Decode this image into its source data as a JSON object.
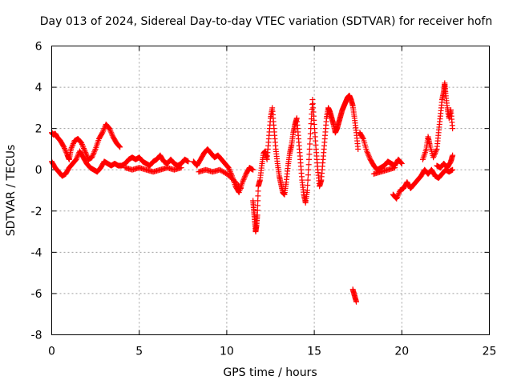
{
  "chart_data": {
    "type": "scatter",
    "title": "Day 013 of 2024, Sidereal Day-to-day VTEC variation (SDTVAR) for receiver hofn",
    "xlabel": "GPS time / hours",
    "ylabel": "SDTVAR / TECUs",
    "xlim": [
      0,
      25
    ],
    "ylim": [
      -8,
      6
    ],
    "x_ticks": [
      0,
      5,
      10,
      15,
      20,
      25
    ],
    "y_ticks": [
      -8,
      -6,
      -4,
      -2,
      0,
      2,
      4,
      6
    ],
    "x_tick_labels": [
      "0",
      "5",
      "10",
      "15",
      "20",
      "25"
    ],
    "y_tick_labels": [
      "-8",
      "-6",
      "-4",
      "-2",
      "0",
      "2",
      "4",
      "6"
    ],
    "grid": true,
    "marker": "plus",
    "color": "#ff0000",
    "series": [
      {
        "name": "SDTVAR",
        "points": [
          [
            0.0,
            1.8
          ],
          [
            0.1,
            1.7
          ],
          [
            0.2,
            1.75
          ],
          [
            0.3,
            1.6
          ],
          [
            0.5,
            1.4
          ],
          [
            0.7,
            1.1
          ],
          [
            0.9,
            0.7
          ],
          [
            1.0,
            0.5
          ],
          [
            1.1,
            1.0
          ],
          [
            1.3,
            1.4
          ],
          [
            1.5,
            1.5
          ],
          [
            1.7,
            1.3
          ],
          [
            1.9,
            0.9
          ],
          [
            2.1,
            0.5
          ],
          [
            2.3,
            0.6
          ],
          [
            2.5,
            1.0
          ],
          [
            2.7,
            1.5
          ],
          [
            2.9,
            1.8
          ],
          [
            3.1,
            2.2
          ],
          [
            3.3,
            2.0
          ],
          [
            3.5,
            1.6
          ],
          [
            3.7,
            1.3
          ],
          [
            3.9,
            1.1
          ],
          [
            0.0,
            0.4
          ],
          [
            0.2,
            0.1
          ],
          [
            0.4,
            -0.1
          ],
          [
            0.6,
            -0.3
          ],
          [
            0.8,
            -0.2
          ],
          [
            1.0,
            0.1
          ],
          [
            1.2,
            0.3
          ],
          [
            1.4,
            0.5
          ],
          [
            1.6,
            0.9
          ],
          [
            1.8,
            0.6
          ],
          [
            2.0,
            0.3
          ],
          [
            2.2,
            0.1
          ],
          [
            2.4,
            0.0
          ],
          [
            2.6,
            -0.1
          ],
          [
            2.8,
            0.1
          ],
          [
            3.0,
            0.4
          ],
          [
            3.2,
            0.3
          ],
          [
            3.4,
            0.2
          ],
          [
            3.6,
            0.3
          ],
          [
            3.8,
            0.2
          ],
          [
            4.0,
            0.2
          ],
          [
            4.2,
            0.3
          ],
          [
            4.4,
            0.5
          ],
          [
            4.6,
            0.6
          ],
          [
            4.8,
            0.5
          ],
          [
            5.0,
            0.6
          ],
          [
            5.2,
            0.4
          ],
          [
            5.4,
            0.3
          ],
          [
            5.6,
            0.2
          ],
          [
            5.8,
            0.4
          ],
          [
            6.0,
            0.5
          ],
          [
            6.2,
            0.7
          ],
          [
            6.4,
            0.4
          ],
          [
            6.6,
            0.3
          ],
          [
            6.8,
            0.5
          ],
          [
            7.0,
            0.3
          ],
          [
            7.2,
            0.2
          ],
          [
            7.4,
            0.3
          ],
          [
            7.6,
            0.5
          ],
          [
            7.8,
            0.4
          ],
          [
            4.2,
            0.1
          ],
          [
            4.6,
            0.0
          ],
          [
            5.0,
            0.1
          ],
          [
            5.4,
            0.0
          ],
          [
            5.8,
            -0.1
          ],
          [
            6.2,
            0.0
          ],
          [
            6.6,
            0.1
          ],
          [
            7.0,
            0.0
          ],
          [
            7.4,
            0.1
          ],
          [
            8.1,
            0.4
          ],
          [
            8.3,
            0.2
          ],
          [
            8.5,
            0.5
          ],
          [
            8.7,
            0.8
          ],
          [
            8.9,
            1.0
          ],
          [
            9.1,
            0.8
          ],
          [
            9.3,
            0.6
          ],
          [
            9.5,
            0.7
          ],
          [
            9.7,
            0.5
          ],
          [
            9.9,
            0.3
          ],
          [
            10.1,
            0.1
          ],
          [
            10.3,
            -0.3
          ],
          [
            10.5,
            -0.8
          ],
          [
            10.7,
            -1.1
          ],
          [
            10.9,
            -0.6
          ],
          [
            11.1,
            -0.2
          ],
          [
            11.3,
            0.1
          ],
          [
            11.5,
            0.0
          ],
          [
            8.4,
            -0.1
          ],
          [
            8.8,
            0.0
          ],
          [
            9.2,
            -0.1
          ],
          [
            9.6,
            0.0
          ],
          [
            10.0,
            -0.2
          ],
          [
            10.4,
            -0.5
          ],
          [
            10.8,
            -0.9
          ],
          [
            11.5,
            -1.5
          ],
          [
            11.55,
            -2.0
          ],
          [
            11.6,
            -2.5
          ],
          [
            11.65,
            -3.0
          ],
          [
            11.7,
            -2.7
          ],
          [
            11.75,
            -2.2
          ],
          [
            11.8,
            -0.8
          ],
          [
            11.9,
            -0.5
          ],
          [
            12.0,
            0.2
          ],
          [
            12.1,
            0.8
          ],
          [
            12.2,
            0.9
          ],
          [
            12.3,
            0.5
          ],
          [
            12.4,
            1.5
          ],
          [
            12.5,
            2.5
          ],
          [
            12.6,
            3.0
          ],
          [
            12.7,
            2.0
          ],
          [
            12.8,
            1.0
          ],
          [
            12.9,
            0.3
          ],
          [
            13.0,
            -0.3
          ],
          [
            13.1,
            -0.7
          ],
          [
            13.2,
            -1.1
          ],
          [
            13.3,
            -1.2
          ],
          [
            13.4,
            -0.6
          ],
          [
            13.5,
            0.2
          ],
          [
            13.6,
            0.8
          ],
          [
            13.7,
            1.2
          ],
          [
            13.8,
            1.8
          ],
          [
            13.9,
            2.2
          ],
          [
            14.0,
            2.5
          ],
          [
            14.1,
            1.5
          ],
          [
            14.2,
            0.5
          ],
          [
            14.3,
            -0.5
          ],
          [
            14.4,
            -1.2
          ],
          [
            14.5,
            -1.6
          ],
          [
            14.6,
            -1.0
          ],
          [
            14.7,
            0.5
          ],
          [
            14.8,
            2.0
          ],
          [
            14.9,
            3.4
          ],
          [
            15.0,
            2.2
          ],
          [
            15.1,
            1.0
          ],
          [
            15.2,
            0.0
          ],
          [
            15.3,
            -0.8
          ],
          [
            15.4,
            -0.5
          ],
          [
            15.5,
            0.5
          ],
          [
            15.6,
            1.5
          ],
          [
            15.7,
            2.5
          ],
          [
            15.8,
            3.0
          ],
          [
            15.9,
            2.8
          ],
          [
            16.0,
            2.5
          ],
          [
            16.1,
            2.2
          ],
          [
            16.2,
            1.8
          ],
          [
            16.3,
            2.0
          ],
          [
            16.4,
            2.3
          ],
          [
            16.5,
            2.6
          ],
          [
            16.6,
            2.9
          ],
          [
            16.7,
            3.1
          ],
          [
            16.8,
            3.3
          ],
          [
            16.9,
            3.5
          ],
          [
            17.0,
            3.6
          ],
          [
            17.1,
            3.4
          ],
          [
            17.2,
            3.1
          ],
          [
            17.3,
            2.5
          ],
          [
            17.4,
            1.8
          ],
          [
            17.5,
            1.0
          ],
          [
            17.2,
            -5.8
          ],
          [
            17.3,
            -6.1
          ],
          [
            17.4,
            -6.4
          ],
          [
            17.6,
            1.8
          ],
          [
            17.8,
            1.5
          ],
          [
            18.0,
            0.9
          ],
          [
            18.2,
            0.5
          ],
          [
            18.4,
            0.2
          ],
          [
            18.6,
            0.0
          ],
          [
            18.8,
            0.1
          ],
          [
            19.0,
            0.2
          ],
          [
            19.2,
            0.4
          ],
          [
            19.4,
            0.3
          ],
          [
            19.6,
            0.2
          ],
          [
            19.8,
            0.5
          ],
          [
            20.0,
            0.3
          ],
          [
            18.4,
            -0.2
          ],
          [
            18.8,
            -0.1
          ],
          [
            19.2,
            0.0
          ],
          [
            19.6,
            0.1
          ],
          [
            19.5,
            -1.2
          ],
          [
            19.7,
            -1.4
          ],
          [
            19.9,
            -1.0
          ],
          [
            20.1,
            -0.9
          ],
          [
            20.3,
            -0.6
          ],
          [
            20.5,
            -0.9
          ],
          [
            20.7,
            -0.7
          ],
          [
            20.9,
            -0.5
          ],
          [
            21.1,
            -0.3
          ],
          [
            21.3,
            0.0
          ],
          [
            21.5,
            -0.2
          ],
          [
            21.7,
            0.0
          ],
          [
            21.9,
            -0.3
          ],
          [
            22.1,
            -0.4
          ],
          [
            22.3,
            -0.2
          ],
          [
            22.5,
            0.0
          ],
          [
            22.7,
            -0.1
          ],
          [
            22.9,
            0.0
          ],
          [
            21.2,
            0.5
          ],
          [
            21.4,
            1.0
          ],
          [
            21.5,
            1.6
          ],
          [
            21.6,
            1.2
          ],
          [
            21.8,
            0.6
          ],
          [
            22.0,
            1.0
          ],
          [
            22.1,
            1.8
          ],
          [
            22.2,
            2.6
          ],
          [
            22.3,
            3.4
          ],
          [
            22.4,
            3.8
          ],
          [
            22.45,
            4.2
          ],
          [
            22.5,
            3.7
          ],
          [
            22.6,
            3.0
          ],
          [
            22.7,
            2.5
          ],
          [
            22.8,
            2.9
          ],
          [
            22.9,
            2.0
          ],
          [
            22.0,
            0.2
          ],
          [
            22.2,
            0.1
          ],
          [
            22.4,
            0.3
          ],
          [
            22.6,
            0.1
          ],
          [
            22.8,
            0.4
          ],
          [
            22.9,
            0.7
          ]
        ]
      }
    ]
  }
}
